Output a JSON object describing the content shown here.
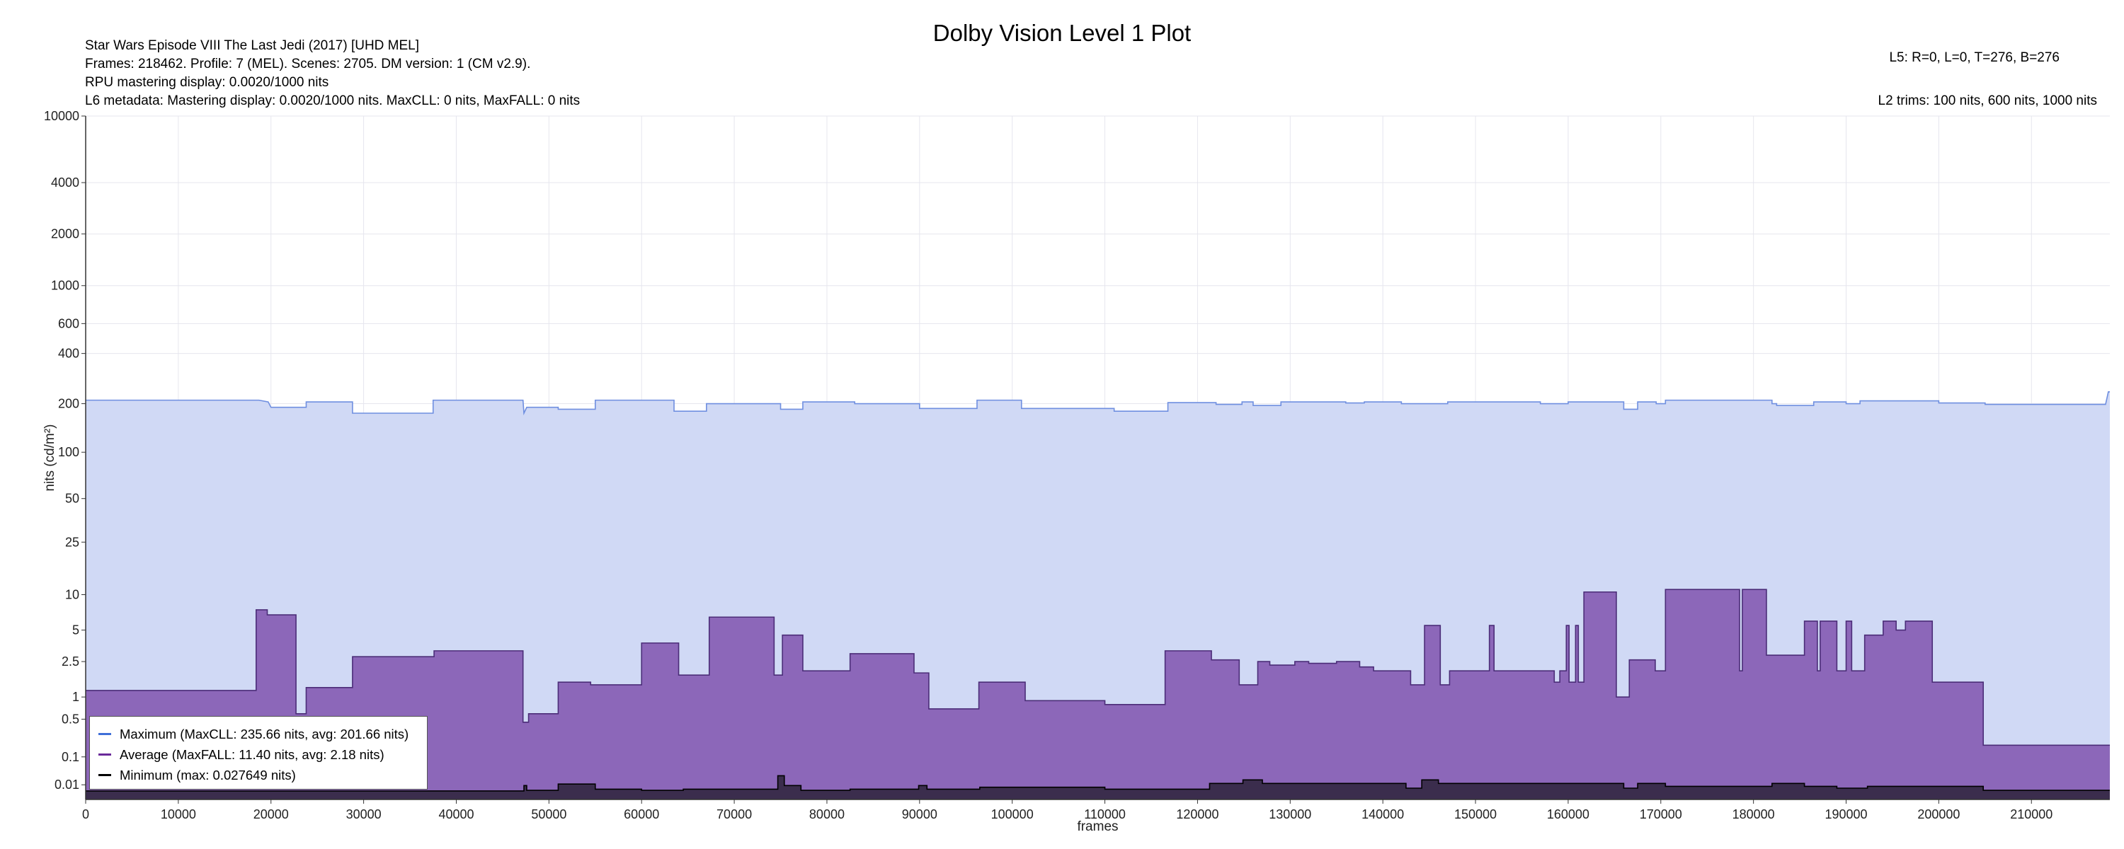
{
  "header": {
    "title": "Dolby Vision Level 1 Plot",
    "info_lines": [
      "Star Wars Episode VIII The Last Jedi (2017) [UHD MEL]",
      "Frames: 218462. Profile: 7 (MEL). Scenes: 2705. DM version: 1 (CM v2.9).",
      "RPU mastering display: 0.0020/1000 nits",
      "L6 metadata: Mastering display: 0.0020/1000 nits. MaxCLL: 0 nits, MaxFALL: 0 nits"
    ],
    "right_lines": [
      "L5: R=0, L=0, T=276, B=276",
      "L2 trims: 100 nits, 600 nits, 1000 nits"
    ]
  },
  "legend": {
    "items": [
      {
        "label": "Maximum (MaxCLL: 235.66 nits, avg: 201.66 nits)",
        "color": "#3f6fd8"
      },
      {
        "label": "Average (MaxFALL: 11.40 nits, avg: 2.18 nits)",
        "color": "#6a2a9a"
      },
      {
        "label": "Minimum (max: 0.027649 nits)",
        "color": "#000000"
      }
    ]
  },
  "colors": {
    "max_fill": "#d0d9f5",
    "max_line": "#6f8fe0",
    "avg_fill": "#8c67b9",
    "avg_line": "#4b2d78",
    "min_fill": "#3b2d4d",
    "min_line": "#000000",
    "grid": "#e6e6ee",
    "axis": "#333333"
  },
  "chart_data": {
    "type": "area",
    "title": "Dolby Vision Level 1 Plot",
    "xlabel": "frames",
    "ylabel": "nits (cd/m²)",
    "xlim": [
      0,
      218462
    ],
    "ylim": [
      0,
      10000
    ],
    "y_scale": "pq",
    "x_ticks": [
      0,
      10000,
      20000,
      30000,
      40000,
      50000,
      60000,
      70000,
      80000,
      90000,
      100000,
      110000,
      120000,
      130000,
      140000,
      150000,
      160000,
      170000,
      180000,
      190000,
      200000,
      210000
    ],
    "y_ticks": [
      0.01,
      0.1,
      0.5,
      1,
      2.5,
      5,
      10,
      25,
      50,
      100,
      200,
      400,
      600,
      1000,
      2000,
      4000,
      10000
    ],
    "grid": true,
    "legend_position": "bottom-left",
    "series": [
      {
        "name": "Maximum (MaxCLL: 235.66 nits, avg: 201.66 nits)",
        "points": [
          [
            0,
            210
          ],
          [
            18700,
            210
          ],
          [
            19700,
            205
          ],
          [
            20000,
            190
          ],
          [
            23800,
            190
          ],
          [
            23800,
            205
          ],
          [
            28800,
            205
          ],
          [
            28800,
            175
          ],
          [
            37500,
            175
          ],
          [
            37500,
            210
          ],
          [
            47200,
            210
          ],
          [
            47300,
            175
          ],
          [
            47600,
            190
          ],
          [
            51000,
            190
          ],
          [
            51000,
            185
          ],
          [
            55000,
            185
          ],
          [
            55000,
            210
          ],
          [
            63500,
            210
          ],
          [
            63500,
            180
          ],
          [
            67000,
            180
          ],
          [
            67000,
            200
          ],
          [
            75000,
            200
          ],
          [
            75000,
            185
          ],
          [
            77400,
            185
          ],
          [
            77400,
            205
          ],
          [
            83000,
            205
          ],
          [
            83000,
            200
          ],
          [
            90000,
            200
          ],
          [
            90000,
            187
          ],
          [
            96200,
            187
          ],
          [
            96200,
            210
          ],
          [
            101000,
            210
          ],
          [
            101000,
            187
          ],
          [
            111000,
            187
          ],
          [
            111000,
            180
          ],
          [
            116800,
            180
          ],
          [
            116800,
            203
          ],
          [
            122000,
            203
          ],
          [
            122000,
            198
          ],
          [
            124800,
            198
          ],
          [
            124800,
            205
          ],
          [
            126000,
            205
          ],
          [
            126000,
            195
          ],
          [
            129000,
            195
          ],
          [
            129000,
            205
          ],
          [
            136000,
            205
          ],
          [
            136000,
            202
          ],
          [
            138000,
            202
          ],
          [
            138000,
            205
          ],
          [
            142000,
            205
          ],
          [
            142000,
            200
          ],
          [
            147000,
            200
          ],
          [
            147000,
            205
          ],
          [
            157000,
            205
          ],
          [
            157000,
            200
          ],
          [
            160000,
            200
          ],
          [
            160000,
            205
          ],
          [
            166000,
            205
          ],
          [
            166000,
            185
          ],
          [
            167500,
            185
          ],
          [
            167500,
            205
          ],
          [
            169500,
            205
          ],
          [
            169500,
            200
          ],
          [
            170500,
            200
          ],
          [
            170500,
            210
          ],
          [
            182000,
            210
          ],
          [
            182000,
            200
          ],
          [
            182500,
            200
          ],
          [
            182500,
            195
          ],
          [
            186500,
            195
          ],
          [
            186500,
            205
          ],
          [
            190000,
            205
          ],
          [
            190000,
            200
          ],
          [
            191500,
            200
          ],
          [
            191500,
            208
          ],
          [
            200000,
            208
          ],
          [
            200000,
            202
          ],
          [
            205000,
            202
          ],
          [
            205000,
            198
          ],
          [
            218000,
            198
          ],
          [
            218300,
            236
          ],
          [
            218462,
            236
          ]
        ]
      },
      {
        "name": "Average (MaxFALL: 11.40 nits, avg: 2.18 nits)",
        "points": [
          [
            0,
            1.2
          ],
          [
            18400,
            1.2
          ],
          [
            18400,
            7.5
          ],
          [
            19600,
            7.5
          ],
          [
            19600,
            6.8
          ],
          [
            22700,
            6.8
          ],
          [
            22700,
            0.6
          ],
          [
            23800,
            0.6
          ],
          [
            23800,
            1.3
          ],
          [
            28800,
            1.3
          ],
          [
            28800,
            2.8
          ],
          [
            37600,
            2.8
          ],
          [
            37600,
            3.2
          ],
          [
            47200,
            3.2
          ],
          [
            47200,
            0.45
          ],
          [
            47800,
            0.45
          ],
          [
            47800,
            0.6
          ],
          [
            51000,
            0.6
          ],
          [
            51000,
            1.5
          ],
          [
            54500,
            1.5
          ],
          [
            54500,
            1.4
          ],
          [
            60000,
            1.4
          ],
          [
            60000,
            3.8
          ],
          [
            64000,
            3.8
          ],
          [
            64000,
            1.8
          ],
          [
            67300,
            1.8
          ],
          [
            67300,
            6.5
          ],
          [
            74300,
            6.5
          ],
          [
            74300,
            1.8
          ],
          [
            75200,
            1.8
          ],
          [
            75200,
            4.5
          ],
          [
            77400,
            4.5
          ],
          [
            77400,
            2.0
          ],
          [
            82500,
            2.0
          ],
          [
            82500,
            3.0
          ],
          [
            89400,
            3.0
          ],
          [
            89400,
            1.9
          ],
          [
            91000,
            1.9
          ],
          [
            91000,
            0.7
          ],
          [
            96400,
            0.7
          ],
          [
            96400,
            1.5
          ],
          [
            101400,
            1.5
          ],
          [
            101400,
            0.9
          ],
          [
            110000,
            0.9
          ],
          [
            110000,
            0.8
          ],
          [
            116500,
            0.8
          ],
          [
            116500,
            3.2
          ],
          [
            121500,
            3.2
          ],
          [
            121500,
            2.6
          ],
          [
            124500,
            2.6
          ],
          [
            124500,
            1.4
          ],
          [
            126500,
            1.4
          ],
          [
            126500,
            2.5
          ],
          [
            127800,
            2.5
          ],
          [
            127800,
            2.3
          ],
          [
            130500,
            2.3
          ],
          [
            130500,
            2.5
          ],
          [
            132000,
            2.5
          ],
          [
            132000,
            2.4
          ],
          [
            135000,
            2.4
          ],
          [
            135000,
            2.5
          ],
          [
            137500,
            2.5
          ],
          [
            137500,
            2.2
          ],
          [
            139000,
            2.2
          ],
          [
            139000,
            2.0
          ],
          [
            143000,
            2.0
          ],
          [
            143000,
            1.4
          ],
          [
            144500,
            1.4
          ],
          [
            144500,
            5.5
          ],
          [
            146200,
            5.5
          ],
          [
            146200,
            1.4
          ],
          [
            147200,
            1.4
          ],
          [
            147200,
            2.0
          ],
          [
            151500,
            2.0
          ],
          [
            151500,
            5.5
          ],
          [
            152000,
            5.5
          ],
          [
            152000,
            2.0
          ],
          [
            158500,
            2.0
          ],
          [
            158500,
            1.5
          ],
          [
            159100,
            1.5
          ],
          [
            159100,
            2.0
          ],
          [
            159800,
            2.0
          ],
          [
            159800,
            5.5
          ],
          [
            160100,
            5.5
          ],
          [
            160100,
            1.5
          ],
          [
            160800,
            1.5
          ],
          [
            160800,
            5.5
          ],
          [
            161100,
            5.5
          ],
          [
            161100,
            1.5
          ],
          [
            161700,
            1.5
          ],
          [
            161700,
            10.5
          ],
          [
            165200,
            10.5
          ],
          [
            165200,
            1.0
          ],
          [
            166600,
            1.0
          ],
          [
            166600,
            2.6
          ],
          [
            169400,
            2.6
          ],
          [
            169400,
            2.0
          ],
          [
            170500,
            2.0
          ],
          [
            170500,
            11.0
          ],
          [
            178500,
            11.0
          ],
          [
            178500,
            2.0
          ],
          [
            178800,
            2.0
          ],
          [
            178800,
            11.0
          ],
          [
            181400,
            11.0
          ],
          [
            181400,
            2.9
          ],
          [
            185500,
            2.9
          ],
          [
            185500,
            6.0
          ],
          [
            186900,
            6.0
          ],
          [
            186900,
            2.0
          ],
          [
            187200,
            2.0
          ],
          [
            187200,
            6.0
          ],
          [
            189000,
            6.0
          ],
          [
            189000,
            2.0
          ],
          [
            190000,
            2.0
          ],
          [
            190000,
            6.0
          ],
          [
            190600,
            6.0
          ],
          [
            190600,
            2.0
          ],
          [
            192000,
            2.0
          ],
          [
            192000,
            4.5
          ],
          [
            194000,
            4.5
          ],
          [
            194000,
            6.0
          ],
          [
            195400,
            6.0
          ],
          [
            195400,
            5.0
          ],
          [
            196400,
            5.0
          ],
          [
            196400,
            6.0
          ],
          [
            199300,
            6.0
          ],
          [
            199300,
            1.5
          ],
          [
            204800,
            1.5
          ],
          [
            204800,
            0.18
          ],
          [
            218462,
            0.18
          ]
        ]
      },
      {
        "name": "Minimum (max: 0.027649 nits)",
        "points": [
          [
            0,
            0.0035
          ],
          [
            47300,
            0.0035
          ],
          [
            47300,
            0.009
          ],
          [
            47600,
            0.009
          ],
          [
            47600,
            0.004
          ],
          [
            51000,
            0.004
          ],
          [
            51000,
            0.011
          ],
          [
            55000,
            0.011
          ],
          [
            55000,
            0.005
          ],
          [
            60000,
            0.005
          ],
          [
            60000,
            0.004
          ],
          [
            64500,
            0.004
          ],
          [
            64500,
            0.005
          ],
          [
            74700,
            0.005
          ],
          [
            74700,
            0.027
          ],
          [
            75400,
            0.027
          ],
          [
            75400,
            0.009
          ],
          [
            77200,
            0.009
          ],
          [
            77200,
            0.004
          ],
          [
            82500,
            0.004
          ],
          [
            82500,
            0.005
          ],
          [
            89900,
            0.005
          ],
          [
            89900,
            0.009
          ],
          [
            90800,
            0.009
          ],
          [
            90800,
            0.005
          ],
          [
            96500,
            0.005
          ],
          [
            96500,
            0.007
          ],
          [
            110000,
            0.007
          ],
          [
            110000,
            0.005
          ],
          [
            121300,
            0.005
          ],
          [
            121300,
            0.012
          ],
          [
            124900,
            0.012
          ],
          [
            124900,
            0.018
          ],
          [
            127000,
            0.018
          ],
          [
            127000,
            0.012
          ],
          [
            142500,
            0.012
          ],
          [
            142500,
            0.006
          ],
          [
            144200,
            0.006
          ],
          [
            144200,
            0.018
          ],
          [
            146000,
            0.018
          ],
          [
            146000,
            0.012
          ],
          [
            166000,
            0.012
          ],
          [
            166000,
            0.006
          ],
          [
            167500,
            0.006
          ],
          [
            167500,
            0.012
          ],
          [
            170500,
            0.012
          ],
          [
            170500,
            0.008
          ],
          [
            182000,
            0.008
          ],
          [
            182000,
            0.012
          ],
          [
            185500,
            0.012
          ],
          [
            185500,
            0.008
          ],
          [
            189000,
            0.008
          ],
          [
            189000,
            0.006
          ],
          [
            192300,
            0.006
          ],
          [
            192300,
            0.008
          ],
          [
            204800,
            0.008
          ],
          [
            204800,
            0.004
          ],
          [
            218462,
            0.004
          ]
        ]
      }
    ]
  }
}
